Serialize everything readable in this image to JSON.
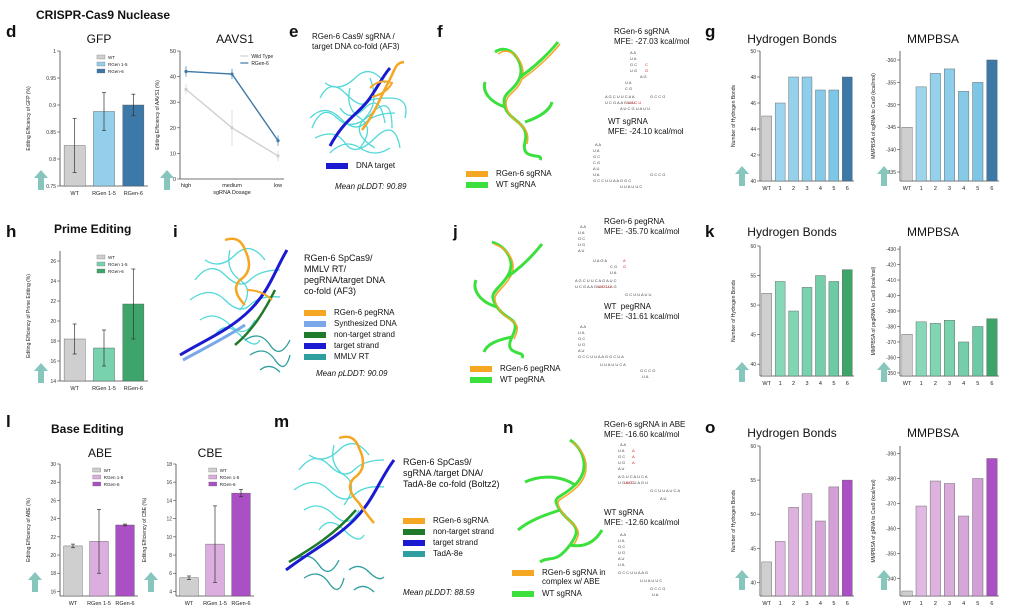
{
  "rows": {
    "cas9": "CRISPR-Cas9 Nuclease",
    "prime": "Prime Editing",
    "base": "Base Editing"
  },
  "panels": {
    "d": "d",
    "e": "e",
    "f": "f",
    "g": "g",
    "h": "h",
    "i": "i",
    "j": "j",
    "k": "k",
    "l": "l",
    "m": "m",
    "n": "n",
    "o": "o"
  },
  "colors": {
    "wt": "#cfcfcf",
    "blue_light": "#93cfea",
    "blue_dark": "#3c78a8",
    "green_light": "#78d2ad",
    "green_dark": "#3ea56a",
    "purple_light": "#dcaddf",
    "purple_dark": "#ab4fc4",
    "arrow": "#86c6bd",
    "orange": "#f5a623",
    "cyan": "#3fd4d4",
    "navy": "#1a1ad0"
  },
  "panel_e": {
    "title": "RGen-6 Cas9/ sgRNA /\ntarget DNA co-fold (AF3)",
    "legend": "DNA target",
    "plddt": "Mean pLDDT: 90.89"
  },
  "panel_f": {
    "mfe1_name": "RGen-6 sgRNA",
    "mfe1_value": "MFE: -27.03 kcal/mol",
    "mfe2_name": "WT sgRNA",
    "mfe2_value": "MFE: -24.10 kcal/mol",
    "legend": [
      "RGen-6 sgRNA",
      "WT  sgRNA"
    ]
  },
  "panel_i": {
    "title": "RGen-6 SpCas9/\nMMLV RT/\npegRNA/target DNA\nco-fold (AF3)",
    "legend": [
      "RGen-6 pegRNA",
      "Synthesized DNA",
      "non-target strand",
      "target strand",
      "MMLV RT"
    ],
    "plddt": "Mean pLDDT: 90.09"
  },
  "panel_j": {
    "mfe1_name": "RGen-6 pegRNA",
    "mfe1_value": "MFE: -35.70 kcal/mol",
    "mfe2_name": "WT  pegRNA",
    "mfe2_value": "MFE: -31.61 kcal/mol",
    "legend": [
      "RGen-6 pegRNA",
      "WT  pegRNA"
    ]
  },
  "panel_m": {
    "title": "RGen-6 SpCas9/\nsgRNA /target DNA/\nTadA-8e co-fold (Boltz2)",
    "legend": [
      "RGen-6 sgRNA",
      "non-target strand",
      "target strand",
      "TadA-8e"
    ],
    "plddt": "Mean pLDDT: 88.59"
  },
  "panel_n": {
    "mfe1_name": "RGen-6 sgRNA in ABE",
    "mfe1_value": "MFE: -16.60 kcal/mol",
    "mfe2_name": "WT sgRNA",
    "mfe2_value": "MFE: -12.60 kcal/mol",
    "legend": [
      "RGen-6 sgRNA in\ncomplex w/ ABE",
      "WT  sgRNA"
    ]
  },
  "chart_data": [
    {
      "id": "d-gfp",
      "type": "bar",
      "title": "GFP",
      "ylabel": "Editing Efficiency of GFP (%)",
      "categories": [
        "WT",
        "RGen 1-5",
        "RGen-6"
      ],
      "values": [
        0.825,
        0.888,
        0.9
      ],
      "errors": [
        0.05,
        0.035,
        0.02
      ],
      "yticks": [
        0.75,
        0.8,
        0.85,
        0.9,
        0.95,
        1.0
      ],
      "ylim": [
        0.75,
        1.0
      ],
      "legend": [
        "WT",
        "RGen 1-5",
        "RGen-6"
      ]
    },
    {
      "id": "d-aavs1",
      "type": "line",
      "title": "AAVS1",
      "ylabel": "Editing Efficiency of AAVS1 (%)",
      "xlabel": "sgRNA Dosage",
      "categories": [
        "high",
        "medium",
        "low"
      ],
      "series": [
        {
          "name": "Wild Type",
          "values": [
            35,
            20,
            9
          ]
        },
        {
          "name": "RGen-6",
          "values": [
            42,
            41,
            15
          ]
        }
      ],
      "yticks": [
        0,
        10,
        20,
        30,
        40,
        50
      ],
      "ylim": [
        0,
        50
      ]
    },
    {
      "id": "g-hb",
      "type": "bar",
      "title": "Hydrogen Bonds",
      "ylabel": "Number of Hydrogen Bonds",
      "categories": [
        "WT",
        "1",
        "2",
        "3",
        "4",
        "5",
        "6"
      ],
      "values": [
        45,
        46,
        48,
        48,
        47,
        47,
        48
      ],
      "yticks": [
        40,
        42,
        44,
        46,
        48,
        50
      ],
      "ylim": [
        40,
        50
      ]
    },
    {
      "id": "g-mm",
      "type": "bar",
      "title": "MMPBSA",
      "ylabel": "MMPBSA of sgRNA to Cas9 (kcal/mol)",
      "categories": [
        "WT",
        "1",
        "2",
        "3",
        "4",
        "5",
        "6"
      ],
      "values": [
        -345,
        -354,
        -357,
        -358,
        -353,
        -355,
        -360
      ],
      "yticks": [
        -335,
        -340,
        -345,
        -350,
        -355,
        -360
      ],
      "ylim": [
        -333,
        -362
      ]
    },
    {
      "id": "h-pe",
      "type": "bar",
      "title": "",
      "ylabel": "Editing Efficiency of Prime Editing (%)",
      "categories": [
        "WT",
        "RGen 1-5",
        "RGen-6"
      ],
      "values": [
        18.2,
        17.3,
        21.7
      ],
      "errors": [
        1.5,
        1.8,
        3.5
      ],
      "yticks": [
        14,
        16,
        18,
        20,
        22,
        24,
        26
      ],
      "ylim": [
        14,
        27
      ],
      "legend": [
        "WT",
        "RGen 1-5",
        "RGen-6"
      ]
    },
    {
      "id": "k-hb",
      "type": "bar",
      "title": "Hydrogen Bonds",
      "ylabel": "Number of Hydrogen Bonds",
      "categories": [
        "WT",
        "1",
        "2",
        "3",
        "4",
        "5",
        "6"
      ],
      "values": [
        52,
        54,
        49,
        53,
        55,
        54,
        56
      ],
      "yticks": [
        40,
        45,
        50,
        55,
        60
      ],
      "ylim": [
        38,
        60
      ]
    },
    {
      "id": "k-mm",
      "type": "bar",
      "title": "MMPBSA",
      "ylabel": "MMPBSA of pegRNA to Cas9 (kcal/mol)",
      "categories": [
        "WT",
        "1",
        "2",
        "3",
        "4",
        "5",
        "6"
      ],
      "values": [
        -375,
        -383,
        -382,
        -384,
        -370,
        -380,
        -385
      ],
      "yticks": [
        -350,
        -360,
        -370,
        -380,
        -390,
        -400,
        -410,
        -420,
        -430
      ],
      "ylim": [
        -348,
        -432
      ]
    },
    {
      "id": "l-abe",
      "type": "bar",
      "title": "ABE",
      "ylabel": "Editing Efficiency of ABE (%)",
      "categories": [
        "WT",
        "RGen 1-5",
        "RGen-6"
      ],
      "values": [
        21.0,
        21.5,
        23.3
      ],
      "errors": [
        0.2,
        3.5,
        0.1
      ],
      "yticks": [
        16,
        18,
        20,
        22,
        24,
        26,
        28,
        30
      ],
      "ylim": [
        15.5,
        30
      ],
      "legend": [
        "WT",
        "RGen 1-5",
        "RGen-6"
      ]
    },
    {
      "id": "l-cbe",
      "type": "bar",
      "title": "CBE",
      "ylabel": "Editing Efficiency of CBE (%)",
      "categories": [
        "WT",
        "RGen 1-5",
        "RGen-6"
      ],
      "values": [
        5.5,
        9.2,
        14.8
      ],
      "errors": [
        0.2,
        4.2,
        0.4
      ],
      "yticks": [
        4,
        6,
        8,
        10,
        12,
        14,
        16,
        18
      ],
      "ylim": [
        3.5,
        18
      ],
      "legend": [
        "WT",
        "RGen 1-5",
        "RGen-6"
      ]
    },
    {
      "id": "o-hb",
      "type": "bar",
      "title": "Hydrogen Bonds",
      "ylabel": "Number of Hydrogen Bonds",
      "categories": [
        "WT",
        "1",
        "2",
        "3",
        "4",
        "5",
        "6"
      ],
      "values": [
        43,
        46,
        51,
        53,
        49,
        54,
        55
      ],
      "yticks": [
        40,
        45,
        50,
        55,
        60
      ],
      "ylim": [
        38,
        60
      ]
    },
    {
      "id": "o-mm",
      "type": "bar",
      "title": "MMPBSA",
      "ylabel": "MMPBSA of gRNA to Cas9 (kcal/mol)",
      "categories": [
        "WT",
        "1",
        "2",
        "3",
        "4",
        "5",
        "6"
      ],
      "values": [
        -335,
        -369,
        -379,
        -378,
        -365,
        -380,
        -388
      ],
      "yticks": [
        -340,
        -350,
        -360,
        -370,
        -380,
        -390
      ],
      "ylim": [
        -333,
        -393
      ]
    }
  ]
}
